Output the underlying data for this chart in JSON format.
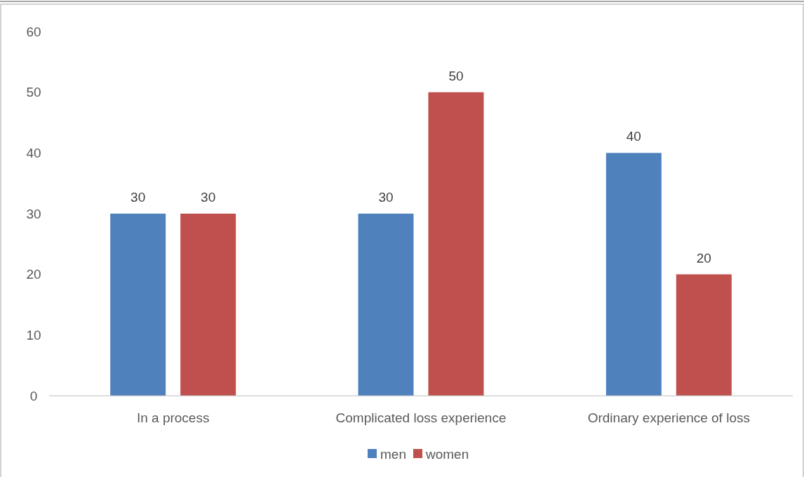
{
  "chart_data": {
    "type": "bar",
    "categories": [
      "In a process",
      "Complicated loss experience",
      "Ordinary experience of loss"
    ],
    "series": [
      {
        "name": "men",
        "color": "#4f81bd",
        "values": [
          30,
          30,
          40
        ]
      },
      {
        "name": "women",
        "color": "#c0504d",
        "values": [
          30,
          50,
          20
        ]
      }
    ],
    "ylim": [
      0,
      60
    ],
    "yticks": [
      0,
      10,
      20,
      30,
      40,
      50,
      60
    ],
    "grid": false,
    "legend": "bottom",
    "data_labels": true
  }
}
